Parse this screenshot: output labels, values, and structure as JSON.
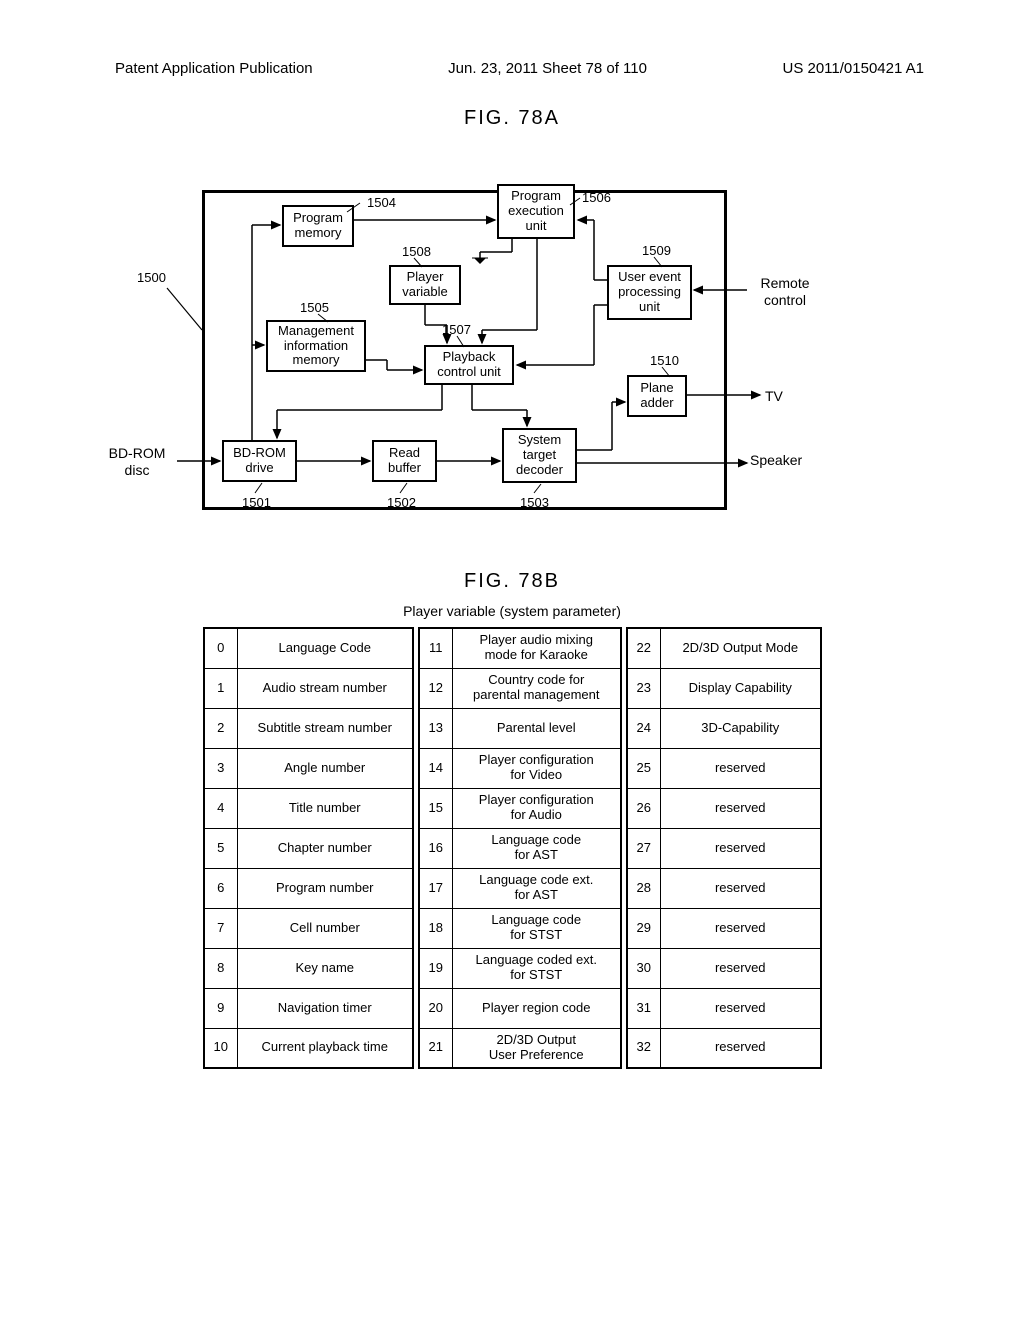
{
  "header": {
    "left": "Patent Application Publication",
    "center": "Jun. 23, 2011   Sheet 78 of 110",
    "right": "US 2011/0150421 A1"
  },
  "fig78a": {
    "title": "FIG. 78A",
    "ref": {
      "r1500": "1500",
      "r1501": "1501",
      "r1502": "1502",
      "r1503": "1503",
      "r1504": "1504",
      "r1505": "1505",
      "r1506": "1506",
      "r1507": "1507",
      "r1508": "1508",
      "r1509": "1509",
      "r1510": "1510"
    },
    "blocks": {
      "program_memory": "Program\nmemory",
      "program_exec": "Program\nexecution\nunit",
      "player_var": "Player\nvariable",
      "mgmt_info": "Management\ninformation\nmemory",
      "playback_ctrl": "Playback\ncontrol unit",
      "user_event": "User event\nprocessing\nunit",
      "plane_adder": "Plane\nadder",
      "bdrom_drive": "BD-ROM\ndrive",
      "read_buffer": "Read\nbuffer",
      "sys_decoder": "System\ntarget\ndecoder"
    },
    "ext": {
      "bdrom_disc": "BD-ROM\ndisc",
      "remote": "Remote\ncontrol",
      "tv": "TV",
      "speaker": "Speaker"
    }
  },
  "fig78b": {
    "title": "FIG. 78B",
    "subtitle": "Player variable (system parameter)",
    "cols": {
      "c1": [
        {
          "i": "0",
          "l": "Language Code"
        },
        {
          "i": "1",
          "l": "Audio stream number"
        },
        {
          "i": "2",
          "l": "Subtitle stream number"
        },
        {
          "i": "3",
          "l": "Angle number"
        },
        {
          "i": "4",
          "l": "Title number"
        },
        {
          "i": "5",
          "l": "Chapter number"
        },
        {
          "i": "6",
          "l": "Program number"
        },
        {
          "i": "7",
          "l": "Cell number"
        },
        {
          "i": "8",
          "l": "Key name"
        },
        {
          "i": "9",
          "l": "Navigation timer"
        },
        {
          "i": "10",
          "l": "Current playback time"
        }
      ],
      "c2": [
        {
          "i": "11",
          "l": "Player audio mixing\nmode for Karaoke"
        },
        {
          "i": "12",
          "l": "Country code for\nparental management"
        },
        {
          "i": "13",
          "l": "Parental level"
        },
        {
          "i": "14",
          "l": "Player configuration\nfor Video"
        },
        {
          "i": "15",
          "l": "Player configuration\nfor Audio"
        },
        {
          "i": "16",
          "l": "Language code\nfor AST"
        },
        {
          "i": "17",
          "l": "Language code ext.\nfor AST"
        },
        {
          "i": "18",
          "l": "Language code\nfor STST"
        },
        {
          "i": "19",
          "l": "Language coded ext.\nfor STST"
        },
        {
          "i": "20",
          "l": "Player region code"
        },
        {
          "i": "21",
          "l": "2D/3D Output\nUser Preference"
        }
      ],
      "c3": [
        {
          "i": "22",
          "l": "2D/3D Output Mode"
        },
        {
          "i": "23",
          "l": "Display Capability"
        },
        {
          "i": "24",
          "l": "3D-Capability"
        },
        {
          "i": "25",
          "l": "reserved"
        },
        {
          "i": "26",
          "l": "reserved"
        },
        {
          "i": "27",
          "l": "reserved"
        },
        {
          "i": "28",
          "l": "reserved"
        },
        {
          "i": "29",
          "l": "reserved"
        },
        {
          "i": "30",
          "l": "reserved"
        },
        {
          "i": "31",
          "l": "reserved"
        },
        {
          "i": "32",
          "l": "reserved"
        }
      ]
    }
  }
}
